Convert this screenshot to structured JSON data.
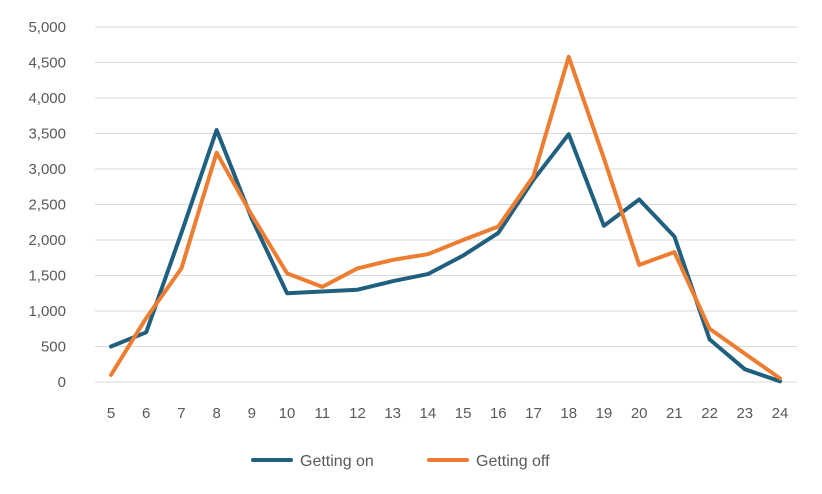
{
  "chart_data": {
    "type": "line",
    "x": [
      5,
      6,
      7,
      8,
      9,
      10,
      11,
      12,
      13,
      14,
      15,
      16,
      17,
      18,
      19,
      20,
      21,
      22,
      23,
      24
    ],
    "series": [
      {
        "name": "Getting on",
        "color": "#1f5f7f",
        "values": [
          500,
          700,
          2100,
          3550,
          2300,
          1250,
          1275,
          1300,
          1420,
          1520,
          1780,
          2100,
          2850,
          3490,
          2200,
          2570,
          2050,
          600,
          180,
          10
        ]
      },
      {
        "name": "Getting off",
        "color": "#ed7d31",
        "values": [
          100,
          900,
          1600,
          3230,
          2350,
          1530,
          1340,
          1600,
          1720,
          1800,
          2000,
          2190,
          2900,
          4580,
          3150,
          1650,
          1830,
          750,
          400,
          50
        ]
      }
    ],
    "yticks": [
      "0",
      "500",
      "1,000",
      "1,500",
      "2,000",
      "2,500",
      "3,000",
      "3,500",
      "4,000",
      "4,500",
      "5,000"
    ],
    "ylim": [
      0,
      5000
    ],
    "grid": true,
    "legend_position": "bottom"
  }
}
